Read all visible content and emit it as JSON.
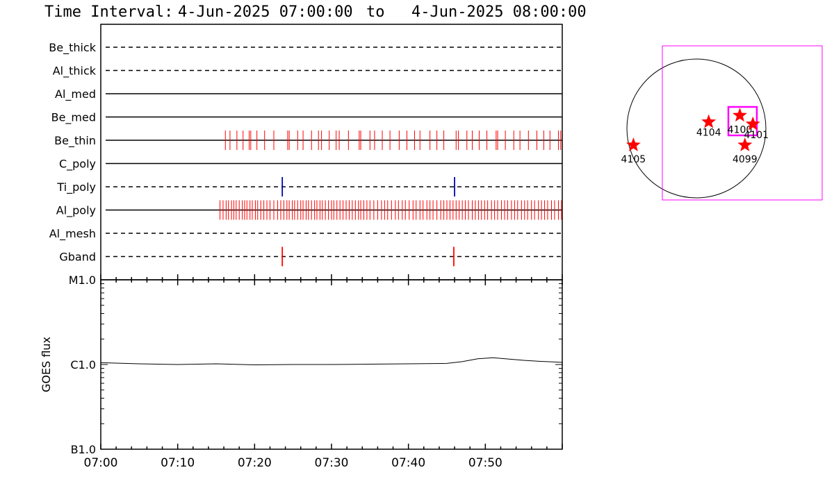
{
  "title": {
    "label": "Time Interval:",
    "start": "4-Jun-2025 07:00:00",
    "sep": "to",
    "end": "4-Jun-2025 08:00:00"
  },
  "colors": {
    "axis": "#000000",
    "event_red": "#ff0000",
    "event_blue": "#0000aa",
    "fov_box": "#ff00ff",
    "star": "#ff0000"
  },
  "chart_data": [
    {
      "type": "timeline",
      "name_source": "filter panel",
      "x_ticks": [
        "07:00",
        "07:10",
        "07:20",
        "07:30",
        "07:40",
        "07:50"
      ],
      "xlim_minutes": [
        0,
        60
      ],
      "rows": [
        {
          "label": "Be_thick",
          "style": "dashed",
          "events": []
        },
        {
          "label": "Al_thick",
          "style": "dashed",
          "events": []
        },
        {
          "label": "Al_med",
          "style": "solid",
          "events": []
        },
        {
          "label": "Be_med",
          "style": "solid",
          "events": []
        },
        {
          "label": "Be_thin",
          "style": "solid",
          "color": "red",
          "events": [
            16.2,
            16.8,
            17.7,
            18.5,
            19.3,
            19.5,
            20.3,
            21.3,
            22.5,
            24.3,
            24.5,
            25.6,
            26.3,
            27.4,
            28.3,
            28.7,
            29.7,
            30.6,
            31.0,
            32.2,
            33.6,
            33.8,
            35.0,
            35.6,
            36.6,
            37.6,
            38.8,
            39.8,
            40.8,
            41.5,
            42.8,
            43.7,
            44.6,
            46.2,
            46.5,
            47.6,
            48.3,
            49.2,
            50.2,
            51.4,
            51.6,
            52.6,
            53.7,
            54.5,
            55.6,
            56.7,
            57.6,
            58.4,
            59.5,
            59.8
          ]
        },
        {
          "label": "C_poly",
          "style": "solid",
          "events": []
        },
        {
          "label": "Ti_poly",
          "style": "dashed",
          "color": "blue",
          "events": [
            23.6,
            46.0
          ]
        },
        {
          "label": "Al_poly",
          "style": "solid",
          "color": "red",
          "events": [
            15.5,
            15.9,
            16.3,
            16.6,
            17.0,
            17.3,
            17.6,
            18.0,
            18.4,
            18.7,
            19.0,
            19.4,
            19.7,
            20.1,
            20.4,
            20.8,
            21.2,
            21.6,
            22.0,
            22.5,
            23.0,
            23.4,
            23.8,
            24.2,
            24.5,
            24.9,
            25.2,
            25.6,
            26.0,
            26.3,
            26.7,
            27.0,
            27.4,
            27.8,
            28.1,
            28.5,
            28.8,
            29.2,
            29.6,
            30.0,
            30.3,
            30.7,
            31.1,
            31.5,
            31.9,
            32.3,
            32.7,
            33.1,
            33.5,
            33.8,
            34.2,
            34.6,
            35.0,
            35.5,
            36.0,
            36.5,
            36.9,
            37.3,
            37.8,
            38.3,
            38.7,
            39.2,
            39.6,
            40.1,
            40.6,
            41.0,
            41.5,
            41.9,
            42.4,
            42.8,
            43.2,
            43.7,
            44.2,
            44.6,
            45.0,
            45.4,
            45.8,
            46.2,
            46.6,
            47.0,
            47.4,
            47.8,
            48.3,
            48.7,
            49.1,
            49.5,
            49.9,
            50.3,
            50.8,
            51.2,
            51.6,
            52.1,
            52.5,
            52.9,
            53.4,
            53.8,
            54.2,
            54.7,
            55.1,
            55.5,
            56.0,
            56.4,
            56.9,
            57.3,
            57.7,
            58.1,
            58.6,
            59.0,
            59.5,
            59.9
          ]
        },
        {
          "label": "Al_mesh",
          "style": "dashed",
          "events": []
        },
        {
          "label": "Gband",
          "style": "dashed",
          "color": "red",
          "events": [
            23.6,
            45.9
          ]
        }
      ]
    },
    {
      "type": "line",
      "ylabel": "GOES flux",
      "y_scale": "log",
      "y_tick_labels": [
        "M1.0",
        "C1.0",
        "B1.0"
      ],
      "y_tick_values": [
        1e-05,
        1e-06,
        1e-07
      ],
      "ylim": [
        1e-07,
        1e-05
      ],
      "x_ticks": [
        "07:00",
        "07:10",
        "07:20",
        "07:30",
        "07:40",
        "07:50"
      ],
      "xlim_minutes": [
        0,
        60
      ],
      "series": [
        {
          "x_minutes": [
            0,
            5,
            10,
            15,
            20,
            25,
            30,
            35,
            40,
            45,
            47,
            49,
            51,
            53,
            55,
            57,
            60
          ],
          "y": [
            1.05e-06,
            1.02e-06,
            1e-06,
            1.02e-06,
            9.9e-07,
            1e-06,
            1e-06,
            1.01e-06,
            1.02e-06,
            1.03e-06,
            1.08e-06,
            1.17e-06,
            1.2e-06,
            1.16e-06,
            1.12e-06,
            1.09e-06,
            1.06e-06
          ]
        }
      ]
    },
    {
      "type": "scatter",
      "name_source": "solar disk map",
      "points": [
        {
          "label": "4105",
          "x": -870,
          "y": -230
        },
        {
          "label": "4104",
          "x": 170,
          "y": 90
        },
        {
          "label": "4100",
          "x": 600,
          "y": 180
        },
        {
          "label": "4101",
          "x": 780,
          "y": 60
        },
        {
          "label": "4099",
          "x": 670,
          "y": -230
        }
      ]
    }
  ]
}
